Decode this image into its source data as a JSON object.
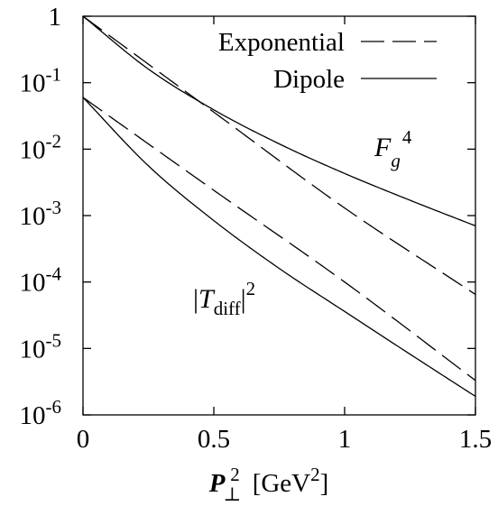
{
  "chart_data": {
    "type": "line",
    "xlabel": "P⊥² [GeV²]",
    "ylabel": "",
    "xlim": [
      0,
      1.5
    ],
    "ylim": [
      1e-06,
      1
    ],
    "y_scale": "log",
    "grid": false,
    "legend_position": "top-right",
    "x_ticks": [
      "0",
      "0.5",
      "1",
      "1.5"
    ],
    "x_tick_values": [
      0,
      0.5,
      1,
      1.5
    ],
    "y_ticks": [
      {
        "value": 1,
        "label": "1"
      },
      {
        "value": 0.1,
        "label": "10-1"
      },
      {
        "value": 0.01,
        "label": "10-2"
      },
      {
        "value": 0.001,
        "label": "10-3"
      },
      {
        "value": 0.0001,
        "label": "10-4"
      },
      {
        "value": 1e-05,
        "label": "10-5"
      },
      {
        "value": 1e-06,
        "label": "10-6"
      }
    ],
    "legend": [
      {
        "label": "Exponential",
        "style": "dashed"
      },
      {
        "label": "Dipole",
        "style": "solid"
      }
    ],
    "annotations": [
      "F_g^4",
      "|T_diff|^2"
    ],
    "series": [
      {
        "group": "F_g^4",
        "style": "dashed",
        "x": [
          0,
          0.5,
          1,
          1.5
        ],
        "y": [
          1,
          0.036,
          0.0013,
          6.5e-05
        ]
      },
      {
        "group": "F_g^4",
        "style": "solid",
        "x": [
          0,
          0.25,
          0.5,
          0.75,
          1,
          1.25,
          1.5
        ],
        "y": [
          1,
          0.16,
          0.039,
          0.012,
          0.0043,
          0.0017,
          0.0007
        ]
      },
      {
        "group": "|T_diff|^2",
        "style": "dashed",
        "x": [
          0,
          0.5,
          1,
          1.5
        ],
        "y": [
          0.06,
          0.0024,
          0.0001,
          3.3e-06
        ]
      },
      {
        "group": "|T_diff|^2",
        "style": "solid",
        "x": [
          0,
          0.25,
          0.5,
          0.75,
          1,
          1.25,
          1.5
        ],
        "y": [
          0.06,
          0.0056,
          0.00084,
          0.00016,
          3.6e-05,
          8.2e-06,
          1.9e-06
        ]
      }
    ]
  }
}
